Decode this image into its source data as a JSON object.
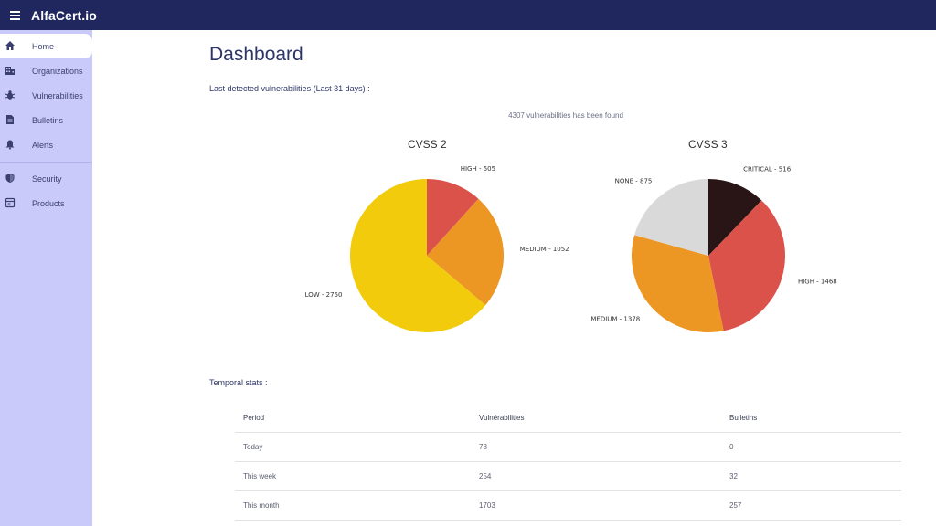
{
  "app": {
    "title": "AlfaCert.io"
  },
  "sidebar": {
    "items": [
      {
        "label": "Home",
        "icon": "home-icon",
        "active": true
      },
      {
        "label": "Organizations",
        "icon": "building-icon"
      },
      {
        "label": "Vulnerabilities",
        "icon": "bug-icon"
      },
      {
        "label": "Bulletins",
        "icon": "document-icon"
      },
      {
        "label": "Alerts",
        "icon": "bell-icon"
      },
      {
        "label": "Security",
        "icon": "shield-icon"
      },
      {
        "label": "Products",
        "icon": "box-icon"
      }
    ]
  },
  "dashboard": {
    "title": "Dashboard",
    "subtitle": "Last detected vulnerabilities  (Last 31 days) :",
    "found_text": "4307 vulnerabilities has been found"
  },
  "chart_data": [
    {
      "type": "pie",
      "title": "CVSS 2",
      "categories": [
        "HIGH",
        "MEDIUM",
        "LOW"
      ],
      "values": [
        505,
        1052,
        2750
      ],
      "labels": [
        "HIGH - 505",
        "MEDIUM - 1052",
        "LOW - 2750"
      ],
      "colors": [
        "#db524b",
        "#ec9623",
        "#f1cb0c"
      ]
    },
    {
      "type": "pie",
      "title": "CVSS 3",
      "categories": [
        "CRITICAL",
        "HIGH",
        "MEDIUM",
        "NONE"
      ],
      "values": [
        516,
        1468,
        1378,
        875
      ],
      "labels": [
        "CRITICAL - 516",
        "HIGH - 1468",
        "MEDIUM - 1378",
        "NONE - 875"
      ],
      "colors": [
        "#2a1516",
        "#db524b",
        "#ec9623",
        "#d9d9d9"
      ]
    }
  ],
  "temporal": {
    "title": "Temporal stats :",
    "headers": [
      "Period",
      "Vulnérabilities",
      "Bulletins"
    ],
    "rows": [
      [
        "Today",
        "78",
        "0"
      ],
      [
        "This week",
        "254",
        "32"
      ],
      [
        "This month",
        "1703",
        "257"
      ]
    ]
  },
  "colors": {
    "topbar": "#20275e",
    "sidebar": "#c9caf9",
    "title": "#2d3566"
  }
}
